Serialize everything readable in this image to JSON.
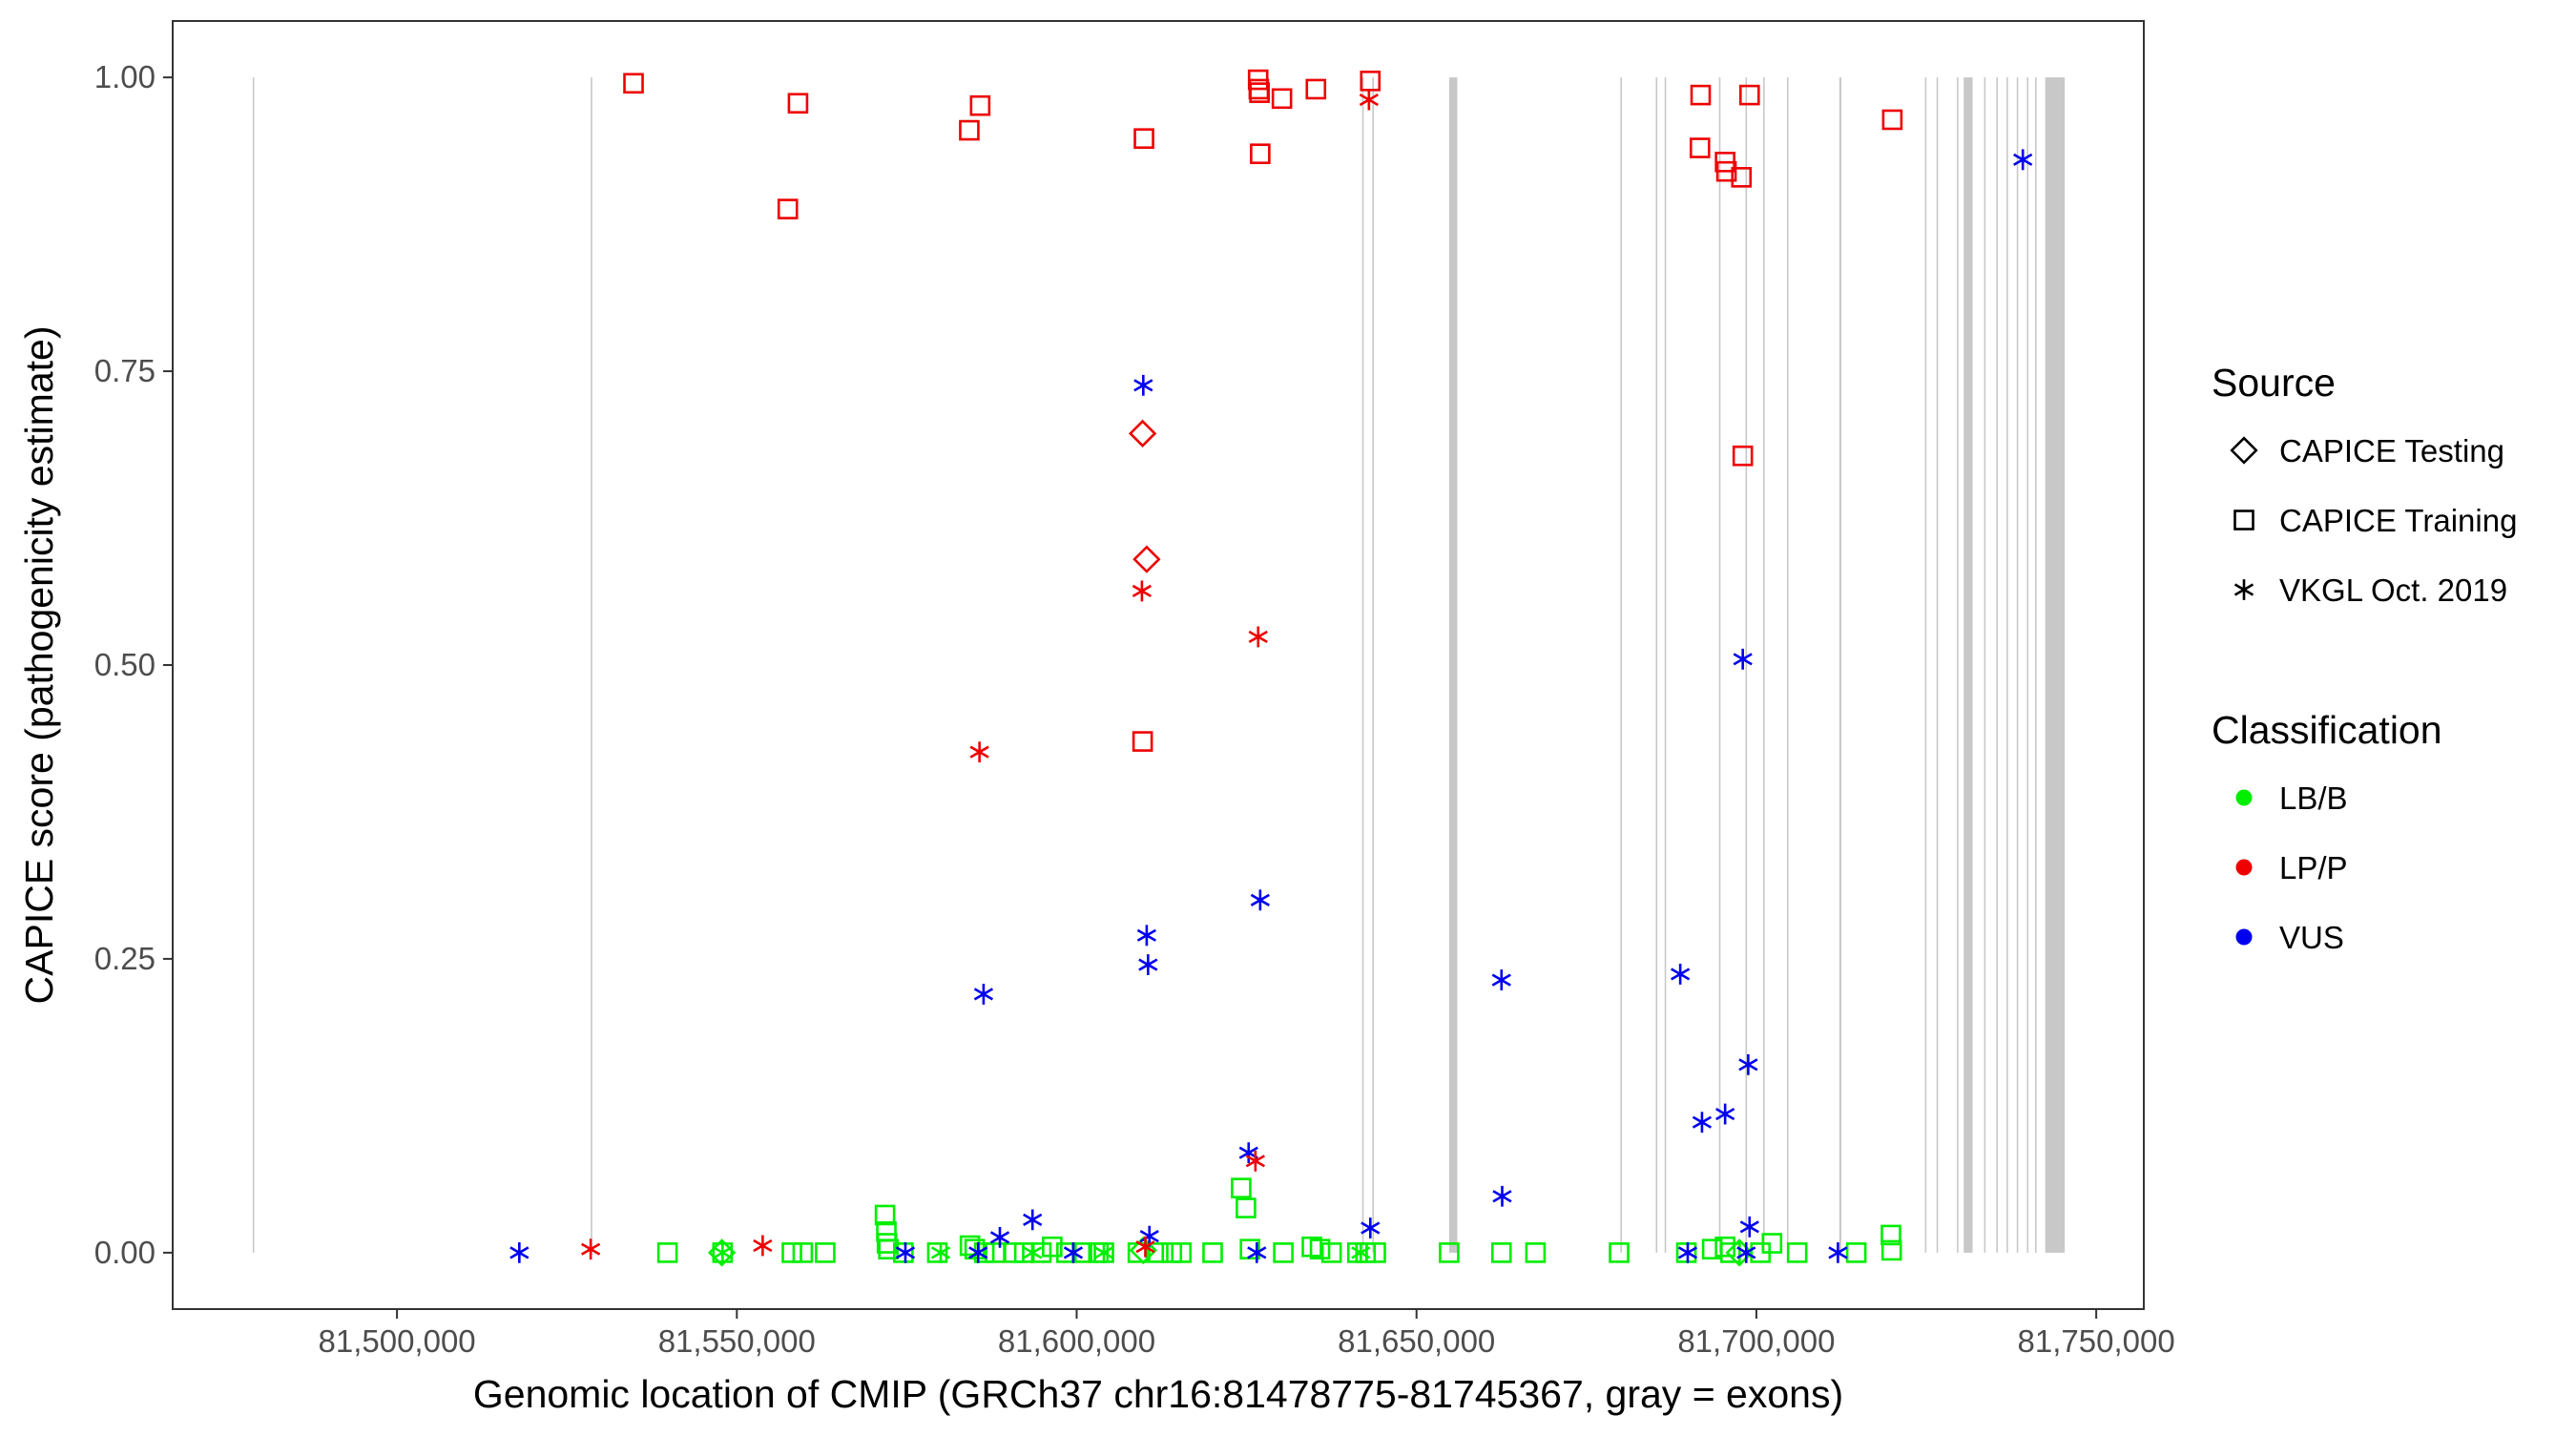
{
  "chart_data": {
    "type": "scatter",
    "xlabel": "Genomic location of CMIP (GRCh37 chr16:81478775-81745367, gray = exons)",
    "ylabel": "CAPICE score (pathogenicity estimate)",
    "xlim": [
      81467000,
      81757000
    ],
    "ylim": [
      -0.048,
      1.048
    ],
    "x_ticks": [
      81500000,
      81550000,
      81600000,
      81650000,
      81700000,
      81750000
    ],
    "x_tick_labels": [
      "81,500,000",
      "81,550,000",
      "81,600,000",
      "81,650,000",
      "81,700,000",
      "81,750,000"
    ],
    "y_ticks": [
      0,
      0.25,
      0.5,
      0.75,
      1.0
    ],
    "y_tick_labels": [
      "0.00",
      "0.25",
      "0.50",
      "0.75",
      "1.00"
    ],
    "exons": [
      [
        81478775,
        81478950
      ],
      [
        81528500,
        81528700
      ],
      [
        81642000,
        81642150
      ],
      [
        81643500,
        81643650
      ],
      [
        81654800,
        81656000
      ],
      [
        81680000,
        81680200
      ],
      [
        81685200,
        81685400
      ],
      [
        81686500,
        81686700
      ],
      [
        81694500,
        81694700
      ],
      [
        81698400,
        81698600
      ],
      [
        81701000,
        81701200
      ],
      [
        81704500,
        81704700
      ],
      [
        81712200,
        81712500
      ],
      [
        81724800,
        81725000
      ],
      [
        81726500,
        81726700
      ],
      [
        81729500,
        81729700
      ],
      [
        81730500,
        81731800
      ],
      [
        81733500,
        81733700
      ],
      [
        81735300,
        81735500
      ],
      [
        81736800,
        81737000
      ],
      [
        81738300,
        81738500
      ],
      [
        81739800,
        81740000
      ],
      [
        81741000,
        81741200
      ],
      [
        81742500,
        81745367
      ]
    ],
    "exon_color": "#c8c8c8",
    "colors": {
      "LB/B": "#00ee00",
      "LP/P": "#ee0000",
      "VUS": "#0000ee"
    },
    "legend": {
      "source_title": "Source",
      "source_items": [
        {
          "label": "CAPICE Testing",
          "shape": "diamond"
        },
        {
          "label": "CAPICE Training",
          "shape": "square"
        },
        {
          "label": "VKGL Oct. 2019",
          "shape": "asterisk"
        }
      ],
      "class_title": "Classification",
      "class_items": [
        {
          "label": "LB/B",
          "key": "LB/B"
        },
        {
          "label": "LP/P",
          "key": "LP/P"
        },
        {
          "label": "VUS",
          "key": "VUS"
        }
      ]
    },
    "series": [
      {
        "source": "CAPICE Training",
        "shape": "square",
        "class": "LP/P",
        "points": [
          [
            81534800,
            0.995
          ],
          [
            81557500,
            0.888
          ],
          [
            81559000,
            0.978
          ],
          [
            81584200,
            0.955
          ],
          [
            81585800,
            0.976
          ],
          [
            81609900,
            0.948
          ],
          [
            81609700,
            0.435
          ],
          [
            81626700,
            0.998
          ],
          [
            81626800,
            0.99
          ],
          [
            81626900,
            0.987
          ],
          [
            81627000,
            0.935
          ],
          [
            81630200,
            0.982
          ],
          [
            81635200,
            0.99
          ],
          [
            81643200,
            0.997
          ],
          [
            81691800,
            0.985
          ],
          [
            81691700,
            0.94
          ],
          [
            81695400,
            0.928
          ],
          [
            81695600,
            0.92
          ],
          [
            81697800,
            0.915
          ],
          [
            81699000,
            0.985
          ],
          [
            81698000,
            0.678
          ],
          [
            81720000,
            0.964
          ]
        ]
      },
      {
        "source": "CAPICE Training",
        "shape": "square",
        "class": "LB/B",
        "points": [
          [
            81539800,
            0.0
          ],
          [
            81547900,
            0.0
          ],
          [
            81558100,
            0.0
          ],
          [
            81559700,
            0.0
          ],
          [
            81563000,
            0.0
          ],
          [
            81571800,
            0.032
          ],
          [
            81572000,
            0.018
          ],
          [
            81572100,
            0.008
          ],
          [
            81572300,
            0.003
          ],
          [
            81574500,
            0.0
          ],
          [
            81579500,
            0.0
          ],
          [
            81584300,
            0.006
          ],
          [
            81585000,
            0.003
          ],
          [
            81586400,
            0.0
          ],
          [
            81588000,
            0.0
          ],
          [
            81590800,
            0.0
          ],
          [
            81592300,
            0.0
          ],
          [
            81594800,
            0.0
          ],
          [
            81596400,
            0.005
          ],
          [
            81598500,
            0.0
          ],
          [
            81600800,
            0.0
          ],
          [
            81603200,
            0.0
          ],
          [
            81604000,
            0.0
          ],
          [
            81609000,
            0.0
          ],
          [
            81612000,
            0.0
          ],
          [
            81614000,
            0.0
          ],
          [
            81615400,
            0.0
          ],
          [
            81620000,
            0.0
          ],
          [
            81624200,
            0.055
          ],
          [
            81624900,
            0.038
          ],
          [
            81625500,
            0.003
          ],
          [
            81630400,
            0.0
          ],
          [
            81634600,
            0.005
          ],
          [
            81635800,
            0.003
          ],
          [
            81637500,
            0.0
          ],
          [
            81641300,
            0.0
          ],
          [
            81642500,
            0.0
          ],
          [
            81644000,
            0.0
          ],
          [
            81654800,
            0.0
          ],
          [
            81662500,
            0.0
          ],
          [
            81667500,
            0.0
          ],
          [
            81679800,
            0.0
          ],
          [
            81689700,
            0.0
          ],
          [
            81693500,
            0.003
          ],
          [
            81695400,
            0.005
          ],
          [
            81696200,
            0.0
          ],
          [
            81700600,
            0.0
          ],
          [
            81702300,
            0.008
          ],
          [
            81706000,
            0.0
          ],
          [
            81714700,
            0.0
          ],
          [
            81719800,
            0.015
          ],
          [
            81719900,
            0.002
          ]
        ]
      },
      {
        "source": "CAPICE Testing",
        "shape": "diamond",
        "class": "LP/P",
        "points": [
          [
            81609700,
            0.697
          ],
          [
            81610300,
            0.59
          ]
        ]
      },
      {
        "source": "CAPICE Testing",
        "shape": "diamond",
        "class": "LB/B",
        "points": [
          [
            81547800,
            0.0
          ],
          [
            81609800,
            0.002
          ],
          [
            81697500,
            0.0
          ]
        ]
      },
      {
        "source": "VKGL Oct. 2019",
        "shape": "asterisk",
        "class": "LP/P",
        "points": [
          [
            81528500,
            0.003
          ],
          [
            81553800,
            0.006
          ],
          [
            81585700,
            0.426
          ],
          [
            81609600,
            0.563
          ],
          [
            81626300,
            0.078
          ],
          [
            81626700,
            0.524
          ],
          [
            81610100,
            0.005
          ],
          [
            81643000,
            0.981
          ]
        ]
      },
      {
        "source": "VKGL Oct. 2019",
        "shape": "asterisk",
        "class": "LB/B",
        "points": [
          [
            81547900,
            0.0
          ],
          [
            81580000,
            0.0
          ],
          [
            81593500,
            0.0
          ],
          [
            81604000,
            0.0
          ],
          [
            81641800,
            0.0
          ]
        ]
      },
      {
        "source": "VKGL Oct. 2019",
        "shape": "asterisk",
        "class": "VUS",
        "points": [
          [
            81518000,
            0.0
          ],
          [
            81574800,
            0.0
          ],
          [
            81585500,
            0.0
          ],
          [
            81586300,
            0.22
          ],
          [
            81588700,
            0.013
          ],
          [
            81593500,
            0.028
          ],
          [
            81599500,
            0.0
          ],
          [
            81609800,
            0.738
          ],
          [
            81610300,
            0.27
          ],
          [
            81610500,
            0.245
          ],
          [
            81610700,
            0.014
          ],
          [
            81625300,
            0.085
          ],
          [
            81626500,
            0.0
          ],
          [
            81627000,
            0.3
          ],
          [
            81643200,
            0.021
          ],
          [
            81662500,
            0.232
          ],
          [
            81662600,
            0.048
          ],
          [
            81688800,
            0.237
          ],
          [
            81689900,
            0.0
          ],
          [
            81692000,
            0.111
          ],
          [
            81695400,
            0.118
          ],
          [
            81698000,
            0.505
          ],
          [
            81698800,
            0.16
          ],
          [
            81699000,
            0.022
          ],
          [
            81698500,
            0.0
          ],
          [
            81712000,
            0.0
          ],
          [
            81739200,
            0.93
          ]
        ]
      }
    ]
  }
}
